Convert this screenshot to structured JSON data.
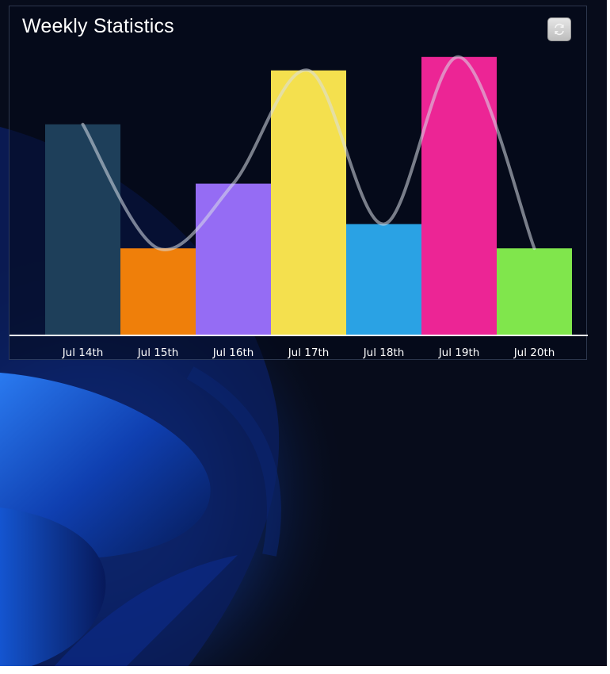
{
  "widget": {
    "title": "Weekly Statistics",
    "refresh_icon": "refresh-icon"
  },
  "chart_data": {
    "type": "bar",
    "title": "Weekly Statistics",
    "categories": [
      "Jul 14th",
      "Jul 15th",
      "Jul 16th",
      "Jul 17th",
      "Jul 18th",
      "Jul 19th",
      "Jul 20th"
    ],
    "values": [
      78,
      32,
      56,
      98,
      41,
      103,
      32
    ],
    "colors": [
      "#1e3f5a",
      "#ef7f0a",
      "#956cf4",
      "#f4e04e",
      "#2aa2e4",
      "#ec2595",
      "#80e64c"
    ],
    "overlay_line": {
      "type": "smooth-line",
      "color": "#d8dde6",
      "note": "trend line through bar tops"
    },
    "ylim": [
      0,
      110
    ],
    "grid": false,
    "legend": "none"
  }
}
